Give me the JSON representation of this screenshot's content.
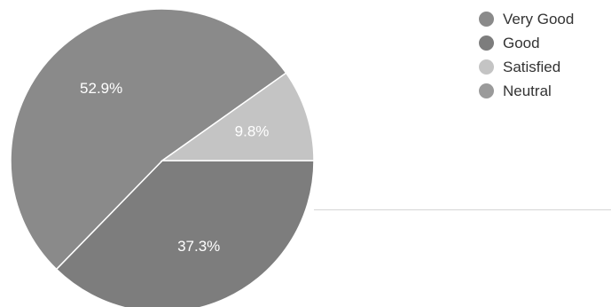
{
  "chart_data": {
    "type": "pie",
    "title": "",
    "legend_position": "top-right",
    "slices": [
      {
        "label": "Very Good",
        "value": 52.9,
        "display": "52.9%",
        "color": "#8a8a8a"
      },
      {
        "label": "Good",
        "value": 37.3,
        "display": "37.3%",
        "color": "#7d7d7d"
      },
      {
        "label": "Satisfied",
        "value": 9.8,
        "display": "9.8%",
        "color": "#c4c4c4"
      },
      {
        "label": "Neutral",
        "value": 0,
        "display": "",
        "color": "#9a9a9a"
      }
    ],
    "slice_order": [
      "Good",
      "Very Good",
      "Satisfied"
    ]
  }
}
